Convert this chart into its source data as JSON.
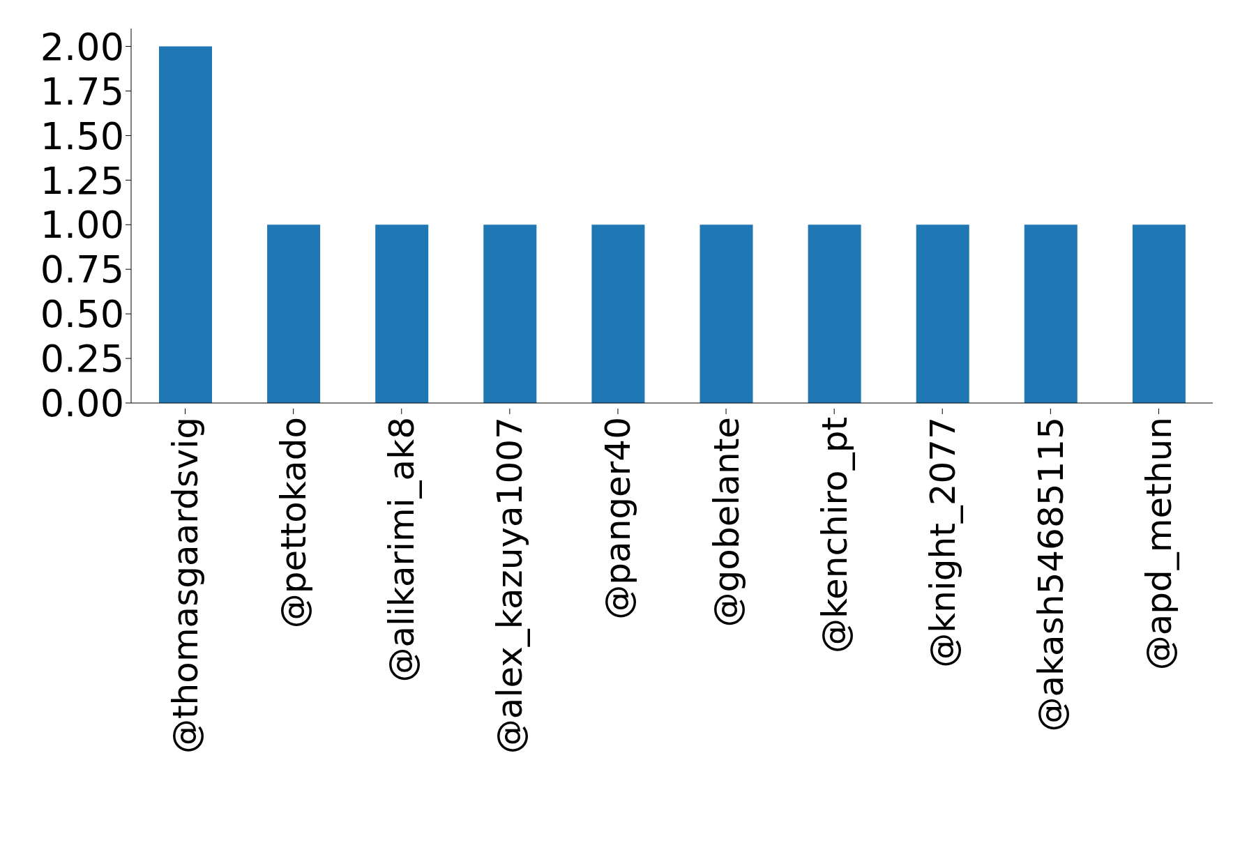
{
  "chart_data": {
    "type": "bar",
    "categories": [
      "@thomasgaardsvig",
      "@pettokado",
      "@alikarimi_ak8",
      "@alex_kazuya1007",
      "@panger40",
      "@gobelante",
      "@kenchiro_pt",
      "@knight_2077",
      "@akash54685115",
      "@apd_methun"
    ],
    "values": [
      2,
      1,
      1,
      1,
      1,
      1,
      1,
      1,
      1,
      1
    ],
    "color": "#1f77b4",
    "ylim": [
      0,
      2.1
    ],
    "yticks": [
      {
        "value": 0,
        "label": "0.00"
      },
      {
        "value": 0.25,
        "label": "0.25"
      },
      {
        "value": 0.5,
        "label": "0.50"
      },
      {
        "value": 0.75,
        "label": "0.75"
      },
      {
        "value": 1,
        "label": "1.00"
      },
      {
        "value": 1.25,
        "label": "1.25"
      },
      {
        "value": 1.5,
        "label": "1.50"
      },
      {
        "value": 1.75,
        "label": "1.75"
      },
      {
        "value": 2,
        "label": "2.00"
      }
    ],
    "grid": false,
    "legend": false
  }
}
